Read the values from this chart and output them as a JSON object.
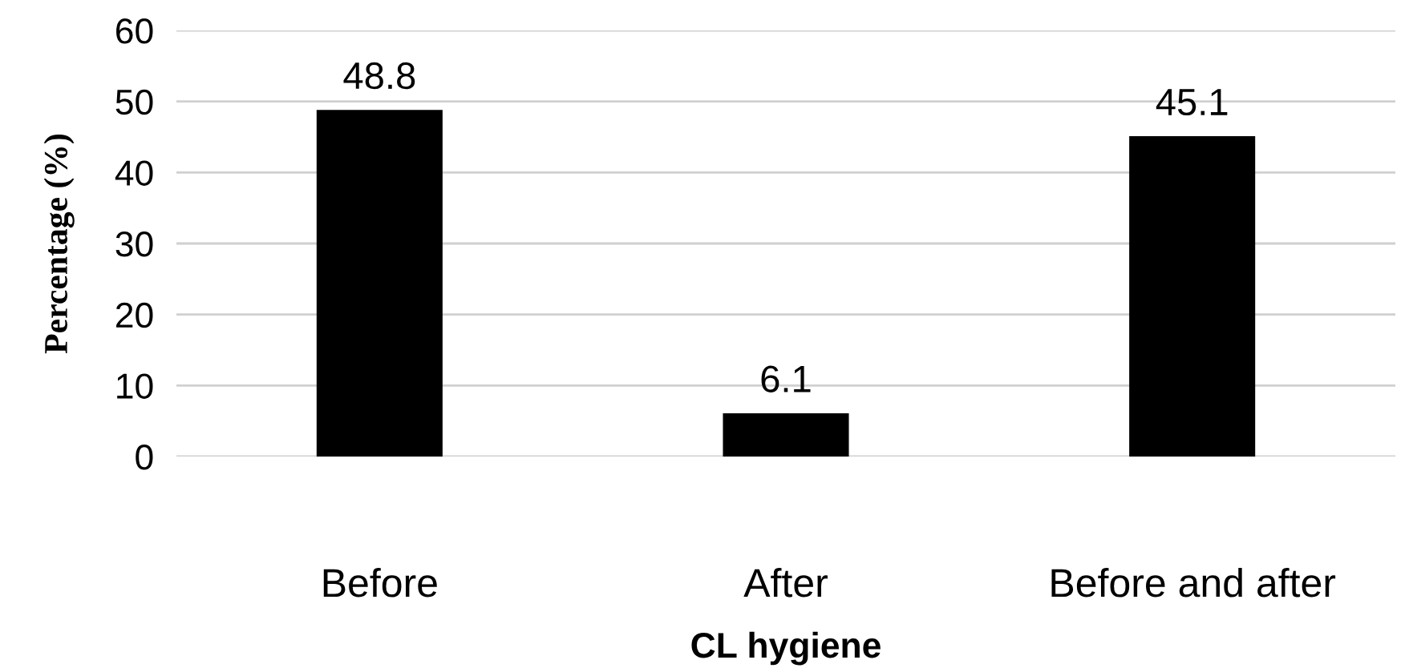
{
  "chart_data": {
    "type": "bar",
    "xlabel": "CL hygiene",
    "ylabel": "Percentage (%)",
    "categories": [
      "Before",
      "After",
      "Before and after"
    ],
    "values": [
      48.8,
      6.1,
      45.1
    ],
    "color": "#000000",
    "ylim": [
      0,
      60
    ],
    "yticks": [
      0,
      10,
      20,
      30,
      40,
      50,
      60
    ],
    "grid": "y",
    "data_labels": true
  }
}
